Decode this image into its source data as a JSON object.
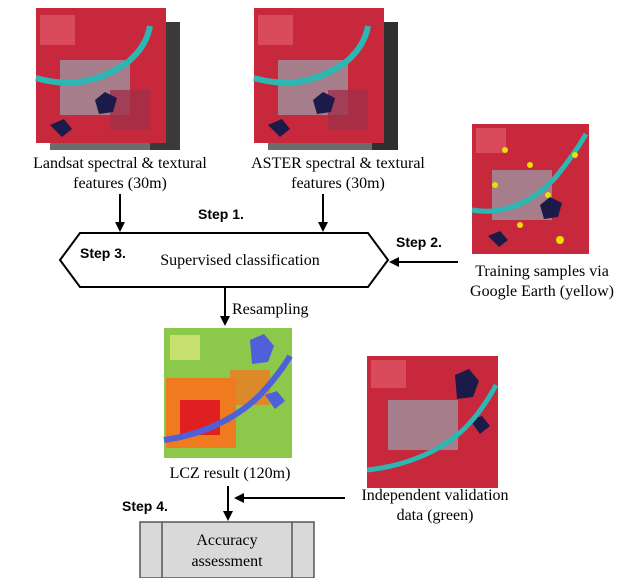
{
  "landsat": {
    "caption_line1": "Landsat spectral & textural",
    "caption_line2": "features (30m)"
  },
  "aster": {
    "caption_line1": "ASTER spectral & textural",
    "caption_line2": "features (30m)"
  },
  "training": {
    "caption_line1": "Training samples via",
    "caption_line2": "Google Earth (yellow)"
  },
  "classification": {
    "label": "Supervised classification"
  },
  "resampling": {
    "label": "Resampling"
  },
  "lcz": {
    "caption": "LCZ result (120m)"
  },
  "validation": {
    "caption_line1": "Independent validation",
    "caption_line2": "data (green)"
  },
  "accuracy": {
    "label_line1": "Accuracy",
    "label_line2": "assessment"
  },
  "steps": {
    "step1": "Step 1.",
    "step2": "Step 2.",
    "step3": "Step 3.",
    "step4": "Step 4."
  },
  "colors": {
    "vegetation_red": "#c8283c",
    "urban_gray": "#9a9aa6",
    "river_cyan": "#2bb8b4",
    "water_navy": "#1c1a48",
    "sample_yellow": "#e8e000",
    "sample_green": "#2ecc40",
    "lcz_green": "#8cc84a",
    "lcz_orange": "#f07a20",
    "lcz_red": "#e02020",
    "lcz_blue": "#5060d8",
    "box_fill": "#d9d9d9"
  }
}
